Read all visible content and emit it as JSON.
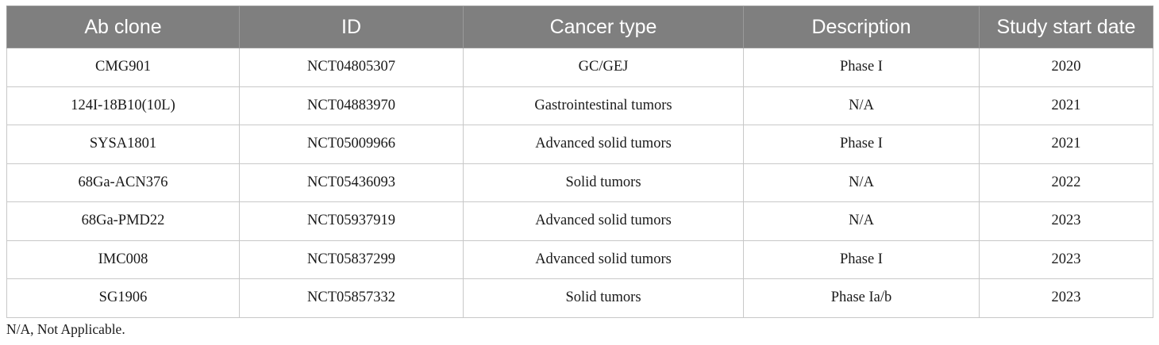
{
  "table": {
    "headers": [
      "Ab clone",
      "ID",
      "Cancer type",
      "Description",
      "Study start date"
    ],
    "rows": [
      [
        "CMG901",
        "NCT04805307",
        "GC/GEJ",
        "Phase I",
        "2020"
      ],
      [
        "124I-18B10(10L)",
        "NCT04883970",
        "Gastrointestinal tumors",
        "N/A",
        "2021"
      ],
      [
        "SYSA1801",
        "NCT05009966",
        "Advanced solid tumors",
        "Phase I",
        "2021"
      ],
      [
        "68Ga-ACN376",
        "NCT05436093",
        "Solid tumors",
        "N/A",
        "2022"
      ],
      [
        "68Ga-PMD22",
        "NCT05937919",
        "Advanced solid tumors",
        "N/A",
        "2023"
      ],
      [
        "IMC008",
        "NCT05837299",
        "Advanced solid tumors",
        "Phase I",
        "2023"
      ],
      [
        "SG1906",
        "NCT05857332",
        "Solid tumors",
        "Phase Ia/b",
        "2023"
      ]
    ]
  },
  "footnote": "N/A, Not Applicable.",
  "colors": {
    "header_background": "#7f7f7f",
    "header_text": "#ffffff",
    "cell_border": "#c8c8c8"
  }
}
